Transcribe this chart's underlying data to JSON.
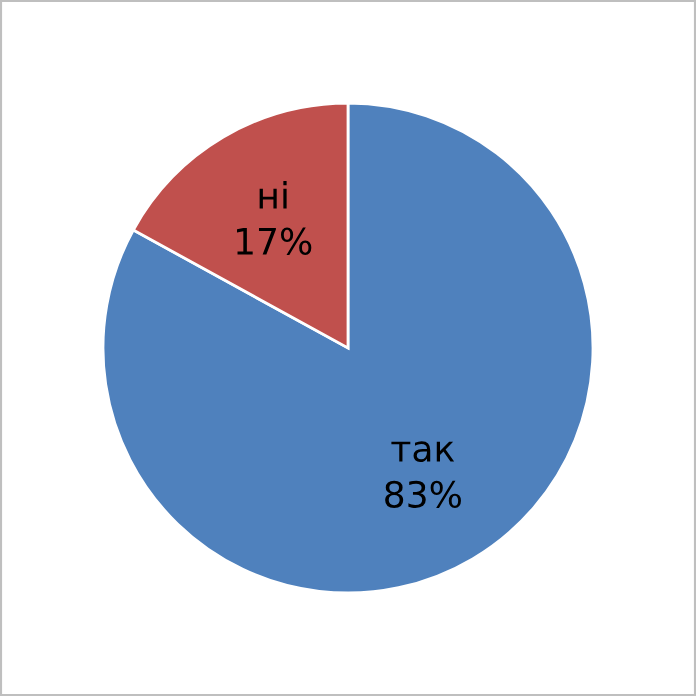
{
  "chart_data": {
    "type": "pie",
    "categories": [
      "так",
      "ні"
    ],
    "values": [
      83,
      17
    ],
    "colors": [
      "#4f81bd",
      "#c0504d"
    ],
    "value_labels": [
      "83%",
      "17%"
    ],
    "legend": false
  }
}
